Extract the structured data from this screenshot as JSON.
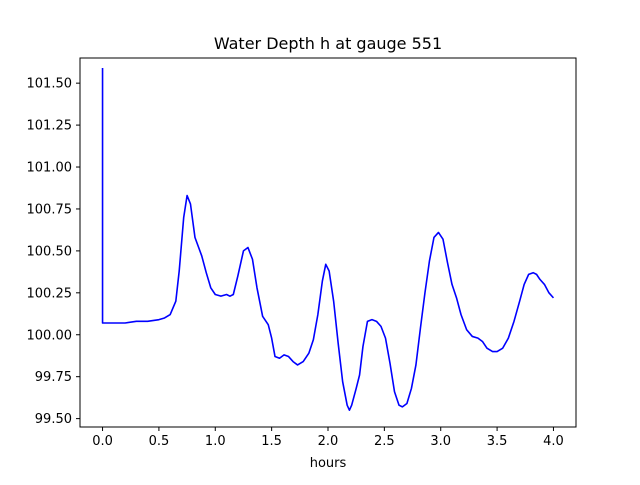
{
  "chart_data": {
    "type": "line",
    "title": "Water Depth h at gauge 551",
    "xlabel": "hours",
    "ylabel": "",
    "xlim": [
      -0.2,
      4.2
    ],
    "ylim": [
      99.45,
      101.65
    ],
    "grid": false,
    "x_ticks": [
      0.0,
      0.5,
      1.0,
      1.5,
      2.0,
      2.5,
      3.0,
      3.5,
      4.0
    ],
    "x_tick_labels": [
      "0.0",
      "0.5",
      "1.0",
      "1.5",
      "2.0",
      "2.5",
      "3.0",
      "3.5",
      "4.0"
    ],
    "y_ticks": [
      99.5,
      99.75,
      100.0,
      100.25,
      100.5,
      100.75,
      101.0,
      101.25,
      101.5
    ],
    "y_tick_labels": [
      "99.50",
      "99.75",
      "100.00",
      "100.25",
      "100.50",
      "100.75",
      "101.00",
      "101.25",
      "101.50"
    ],
    "series": [
      {
        "color": "#0000ff",
        "x": [
          0.0,
          0.0,
          0.0,
          0.1,
          0.2,
          0.3,
          0.4,
          0.5,
          0.55,
          0.6,
          0.65,
          0.68,
          0.72,
          0.75,
          0.78,
          0.82,
          0.88,
          0.92,
          0.96,
          1.0,
          1.05,
          1.1,
          1.13,
          1.16,
          1.2,
          1.25,
          1.29,
          1.33,
          1.37,
          1.42,
          1.47,
          1.5,
          1.53,
          1.57,
          1.61,
          1.65,
          1.69,
          1.73,
          1.78,
          1.83,
          1.87,
          1.91,
          1.95,
          1.98,
          2.01,
          2.05,
          2.09,
          2.13,
          2.17,
          2.19,
          2.21,
          2.25,
          2.28,
          2.31,
          2.35,
          2.39,
          2.43,
          2.47,
          2.51,
          2.55,
          2.59,
          2.63,
          2.66,
          2.7,
          2.74,
          2.78,
          2.82,
          2.86,
          2.9,
          2.94,
          2.98,
          3.02,
          3.06,
          3.1,
          3.14,
          3.18,
          3.23,
          3.28,
          3.33,
          3.37,
          3.41,
          3.46,
          3.5,
          3.55,
          3.6,
          3.65,
          3.7,
          3.74,
          3.78,
          3.82,
          3.85,
          3.88,
          3.92,
          3.96,
          4.0
        ],
        "y": [
          101.59,
          100.07,
          100.07,
          100.07,
          100.07,
          100.08,
          100.08,
          100.09,
          100.1,
          100.12,
          100.2,
          100.38,
          100.7,
          100.83,
          100.78,
          100.58,
          100.47,
          100.37,
          100.28,
          100.24,
          100.23,
          100.24,
          100.23,
          100.24,
          100.35,
          100.5,
          100.52,
          100.45,
          100.28,
          100.11,
          100.06,
          99.98,
          99.87,
          99.86,
          99.88,
          99.87,
          99.84,
          99.82,
          99.84,
          99.89,
          99.97,
          100.12,
          100.32,
          100.42,
          100.38,
          100.2,
          99.95,
          99.72,
          99.58,
          99.55,
          99.58,
          99.68,
          99.76,
          99.93,
          100.08,
          100.09,
          100.08,
          100.05,
          99.98,
          99.83,
          99.66,
          99.58,
          99.57,
          99.59,
          99.68,
          99.82,
          100.04,
          100.25,
          100.44,
          100.58,
          100.61,
          100.57,
          100.43,
          100.3,
          100.22,
          100.12,
          100.03,
          99.99,
          99.98,
          99.96,
          99.92,
          99.9,
          99.9,
          99.92,
          99.98,
          100.08,
          100.2,
          100.3,
          100.36,
          100.37,
          100.36,
          100.33,
          100.3,
          100.25,
          100.22
        ]
      }
    ]
  }
}
